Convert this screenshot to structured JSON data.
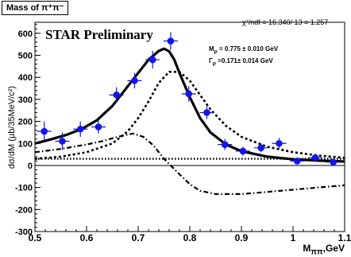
{
  "chart_data": {
    "type": "scatter",
    "title": "Mass of π⁺π⁻",
    "fit_info": "χ²/ndf = 16.340/ 13 = 1.257",
    "label": "STAR Preliminary",
    "params": {
      "m_rho": "M",
      "m_rho_sub": "ρ",
      "m_rho_value": "= 0.775 ± 0.010 GeV",
      "gamma_rho": "Γ",
      "gamma_rho_sub": "ρ",
      "gamma_rho_value": "=0.171± 0.014 GeV"
    },
    "ylabel": "dσ/dM (μb/35MeV/c²)",
    "xlabel": "M",
    "xlabel_sub": "ππ",
    "xlabel_unit": ",GeV",
    "xlim": [
      0.5,
      1.1
    ],
    "ylim": [
      -300,
      650
    ],
    "x_ticks": [
      0.5,
      0.6,
      0.7,
      0.8,
      0.9,
      1,
      1.1
    ],
    "y_ticks": [
      -300,
      -200,
      -100,
      0,
      100,
      200,
      300,
      400,
      500,
      600
    ],
    "series": [
      {
        "style": "points",
        "x": [
          0.518,
          0.553,
          0.588,
          0.623,
          0.658,
          0.693,
          0.728,
          0.763,
          0.798,
          0.833,
          0.868,
          0.903,
          0.938,
          0.973,
          1.008,
          1.043,
          1.078
        ],
        "y": [
          155,
          110,
          165,
          175,
          320,
          385,
          480,
          565,
          325,
          240,
          95,
          65,
          80,
          100,
          20,
          35,
          15
        ],
        "yerr": [
          45,
          40,
          35,
          30,
          35,
          35,
          40,
          40,
          35,
          30,
          25,
          20,
          20,
          25,
          15,
          15,
          15
        ]
      },
      {
        "style": "solid",
        "x": [
          0.5,
          0.53,
          0.56,
          0.59,
          0.62,
          0.65,
          0.68,
          0.7,
          0.72,
          0.74,
          0.75,
          0.76,
          0.77,
          0.78,
          0.8,
          0.82,
          0.84,
          0.87,
          0.9,
          0.95,
          1.0,
          1.05,
          1.1
        ],
        "y": [
          100,
          118,
          138,
          165,
          205,
          270,
          360,
          420,
          480,
          520,
          530,
          518,
          480,
          420,
          310,
          215,
          150,
          95,
          65,
          40,
          28,
          22,
          18
        ]
      },
      {
        "style": "dotted",
        "x": [
          0.5,
          0.55,
          0.6,
          0.65,
          0.68,
          0.7,
          0.72,
          0.74,
          0.76,
          0.78,
          0.8,
          0.82,
          0.84,
          0.87,
          0.9,
          0.95,
          1.0,
          1.05,
          1.1
        ],
        "y": [
          30,
          40,
          60,
          100,
          155,
          215,
          290,
          375,
          425,
          425,
          385,
          320,
          255,
          180,
          130,
          85,
          60,
          45,
          35
        ]
      },
      {
        "style": "dashdot",
        "x": [
          0.5,
          0.55,
          0.6,
          0.63,
          0.66,
          0.69,
          0.71,
          0.73,
          0.75,
          0.78,
          0.8,
          0.82,
          0.85,
          0.9,
          0.95,
          1.0,
          1.05,
          1.1
        ],
        "y": [
          60,
          75,
          95,
          110,
          130,
          145,
          130,
          90,
          30,
          -40,
          -85,
          -115,
          -130,
          -130,
          -120,
          -110,
          -100,
          -90
        ]
      },
      {
        "style": "flat-dotted",
        "x": [
          0.5,
          1.1
        ],
        "y": [
          30,
          30
        ]
      }
    ]
  }
}
